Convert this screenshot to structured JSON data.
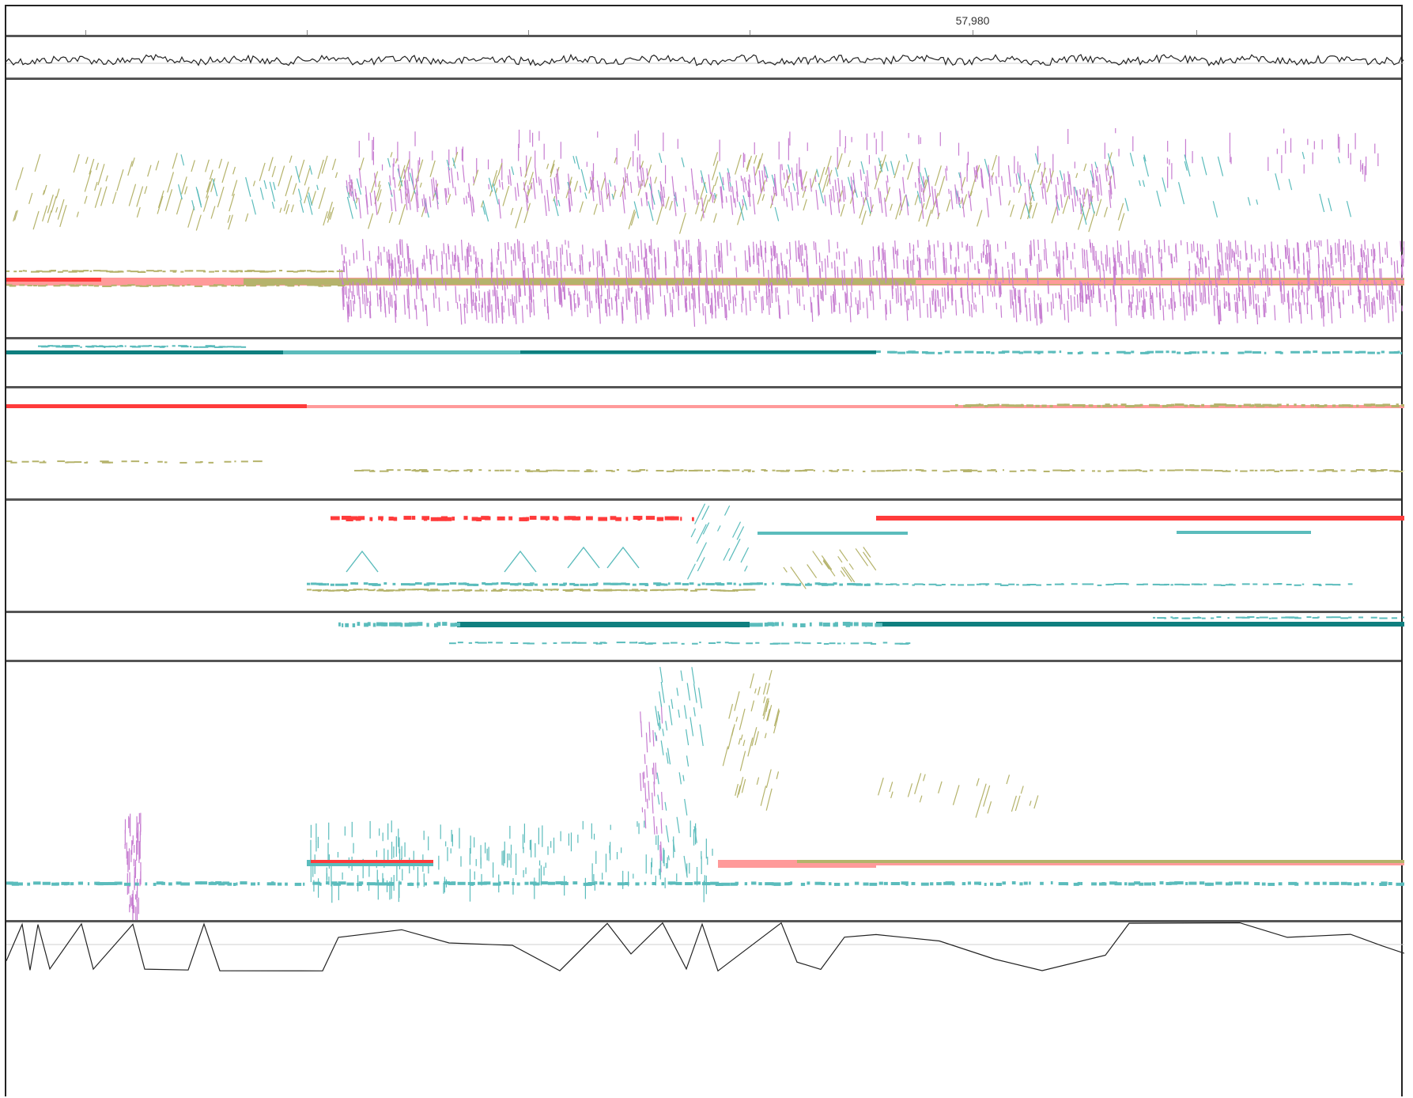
{
  "ruler": {
    "position_label": "57,980"
  },
  "tracks": [
    {
      "id": "top-signal",
      "kind": "line-trace"
    },
    {
      "id": "alignment-1",
      "kind": "read-pileup",
      "colors": [
        "#c77dd1",
        "#b5b36b",
        "#5bbcbc",
        "#ff4444",
        "#ff9090"
      ]
    },
    {
      "id": "alignment-2",
      "kind": "read-pileup",
      "colors": [
        "#2a9a9a",
        "#7ccfcf"
      ]
    },
    {
      "id": "alignment-3",
      "kind": "read-pileup",
      "colors": [
        "#ff3b3b",
        "#ff9a9a",
        "#c9c27a"
      ]
    },
    {
      "id": "alignment-4",
      "kind": "read-pileup",
      "colors": [
        "#ff2222",
        "#5bbcbc",
        "#b5a84a"
      ]
    },
    {
      "id": "alignment-5",
      "kind": "read-pileup",
      "colors": [
        "#0f7f7f",
        "#5bbcbc"
      ]
    },
    {
      "id": "alignment-6",
      "kind": "read-pileup",
      "colors": [
        "#c77dd1",
        "#b5b36b",
        "#5bbcbc",
        "#ff6b6b"
      ]
    },
    {
      "id": "bottom-signal",
      "kind": "line-trace"
    }
  ],
  "colors": {
    "purple": "#c77dd1",
    "olive": "#b5b36b",
    "teal": "#5bbcbc",
    "dark-teal": "#0f7f7f",
    "red": "#ff3b3b",
    "salmon": "#ff9a9a",
    "separator": "#555555"
  }
}
